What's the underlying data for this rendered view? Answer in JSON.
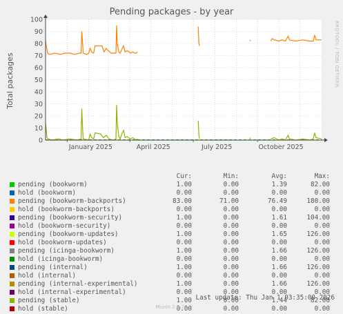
{
  "title": "Pending packages - by year",
  "side_text": "RRDTOOL / TOBI OETIKER",
  "footer": "Munin 2.0.73",
  "last_update": "Last update: Thu Jan  1 03:35:00 2026",
  "columns": [
    "Cur:",
    "Min:",
    "Avg:",
    "Max:"
  ],
  "legend": [
    {
      "name": "pending (bookworm)",
      "color": "#00cc00",
      "cur": "1.00",
      "min": "0.00",
      "avg": "1.39",
      "max": "82.00"
    },
    {
      "name": "hold (bookworm)",
      "color": "#0066b3",
      "cur": "0.00",
      "min": "0.00",
      "avg": "0.00",
      "max": "0.00"
    },
    {
      "name": "pending (bookworm-backports)",
      "color": "#ff8000",
      "cur": "83.00",
      "min": "71.00",
      "avg": "76.49",
      "max": "180.00"
    },
    {
      "name": "hold (bookworm-backports)",
      "color": "#ffcc00",
      "cur": "0.00",
      "min": "0.00",
      "avg": "0.00",
      "max": "0.00"
    },
    {
      "name": "pending (bookworm-security)",
      "color": "#330099",
      "cur": "1.00",
      "min": "0.00",
      "avg": "1.61",
      "max": "104.00"
    },
    {
      "name": "hold (bookworm-security)",
      "color": "#990099",
      "cur": "0.00",
      "min": "0.00",
      "avg": "0.00",
      "max": "0.00"
    },
    {
      "name": "pending (bookworm-updates)",
      "color": "#ccff00",
      "cur": "1.00",
      "min": "0.00",
      "avg": "1.65",
      "max": "126.00"
    },
    {
      "name": "hold (bookworm-updates)",
      "color": "#ff0000",
      "cur": "0.00",
      "min": "0.00",
      "avg": "0.00",
      "max": "0.00"
    },
    {
      "name": "pending (icinga-bookworm)",
      "color": "#808080",
      "cur": "1.00",
      "min": "0.00",
      "avg": "1.66",
      "max": "126.00"
    },
    {
      "name": "hold (icinga-bookworm)",
      "color": "#008f00",
      "cur": "0.00",
      "min": "0.00",
      "avg": "0.00",
      "max": "0.00"
    },
    {
      "name": "pending (internal)",
      "color": "#00487d",
      "cur": "1.00",
      "min": "0.00",
      "avg": "1.66",
      "max": "126.00"
    },
    {
      "name": "hold (internal)",
      "color": "#b35a00",
      "cur": "0.00",
      "min": "0.00",
      "avg": "0.00",
      "max": "0.00"
    },
    {
      "name": "pending (internal-experimental)",
      "color": "#b38f00",
      "cur": "1.00",
      "min": "0.00",
      "avg": "1.66",
      "max": "126.00"
    },
    {
      "name": "hold (internal-experimental)",
      "color": "#6b006b",
      "cur": "0.00",
      "min": "0.00",
      "avg": "0.00",
      "max": "0.00"
    },
    {
      "name": "pending (stable)",
      "color": "#8fb300",
      "cur": "1.00",
      "min": "0.00",
      "avg": "1.44",
      "max": "82.00"
    },
    {
      "name": "hold (stable)",
      "color": "#b30000",
      "cur": "0.00",
      "min": "0.00",
      "avg": "0.00",
      "max": "0.00"
    }
  ],
  "chart_data": {
    "type": "line",
    "title": "Pending packages - by year",
    "ylabel": "Total packages",
    "ylim": [
      0,
      100
    ],
    "yticks": [
      0,
      10,
      20,
      30,
      40,
      50,
      60,
      70,
      80,
      90,
      100
    ],
    "xlim": [
      "2024-12-01",
      "2026-01-01"
    ],
    "xticks": [
      {
        "label": "January 2025",
        "date": "2025-01-01"
      },
      {
        "label": "April 2025",
        "date": "2025-04-01"
      },
      {
        "label": "July 2025",
        "date": "2025-07-01"
      },
      {
        "label": "October 2025",
        "date": "2025-10-01"
      }
    ],
    "grid": true,
    "series": [
      {
        "name": "pending (bookworm-backports)",
        "color": "#ff8000",
        "segments": [
          [
            [
              "2024-12-01",
              83
            ],
            [
              "2024-12-02",
              78
            ],
            [
              "2024-12-04",
              72
            ],
            [
              "2024-12-06",
              71
            ],
            [
              "2024-12-15",
              72
            ],
            [
              "2024-12-22",
              71
            ],
            [
              "2024-12-29",
              72
            ],
            [
              "2025-01-05",
              72
            ],
            [
              "2025-01-12",
              71
            ],
            [
              "2025-01-18",
              72
            ],
            [
              "2025-01-21",
              72
            ],
            [
              "2025-01-22",
              90
            ],
            [
              "2025-01-23",
              82
            ],
            [
              "2025-01-24",
              72
            ],
            [
              "2025-01-29",
              71
            ],
            [
              "2025-02-01",
              72
            ],
            [
              "2025-02-03",
              76
            ],
            [
              "2025-02-05",
              73
            ],
            [
              "2025-02-08",
              72
            ],
            [
              "2025-02-10",
              78
            ],
            [
              "2025-02-20",
              78
            ],
            [
              "2025-02-23",
              73
            ],
            [
              "2025-02-26",
              76
            ],
            [
              "2025-03-01",
              74
            ],
            [
              "2025-03-05",
              72
            ],
            [
              "2025-03-08",
              72
            ],
            [
              "2025-03-12",
              72
            ],
            [
              "2025-03-13",
              95
            ],
            [
              "2025-03-14",
              80
            ],
            [
              "2025-03-16",
              73
            ],
            [
              "2025-03-18",
              72
            ],
            [
              "2025-03-21",
              76
            ],
            [
              "2025-03-23",
              78
            ],
            [
              "2025-03-25",
              73
            ],
            [
              "2025-03-28",
              74
            ],
            [
              "2025-03-31",
              73
            ],
            [
              "2025-04-02",
              72
            ],
            [
              "2025-04-05",
              73
            ],
            [
              "2025-04-08",
              72
            ],
            [
              "2025-04-10",
              72
            ],
            [
              "2025-04-12",
              73
            ]
          ],
          [
            [
              "2025-07-08",
              94
            ],
            [
              "2025-07-09",
              80
            ],
            [
              "2025-07-10",
              78
            ]
          ],
          [
            [
              "2025-09-20",
              83
            ],
            [
              "2025-09-21",
              82
            ]
          ],
          [
            [
              "2025-10-20",
              82
            ],
            [
              "2025-10-22",
              84
            ],
            [
              "2025-10-25",
              83
            ],
            [
              "2025-11-01",
              82
            ],
            [
              "2025-11-05",
              83
            ],
            [
              "2025-11-10",
              82
            ],
            [
              "2025-11-14",
              86
            ],
            [
              "2025-11-16",
              83
            ],
            [
              "2025-11-25",
              82
            ],
            [
              "2025-12-05",
              83
            ],
            [
              "2025-12-15",
              82
            ],
            [
              "2025-12-20",
              82
            ],
            [
              "2025-12-22",
              87
            ],
            [
              "2025-12-24",
              83
            ],
            [
              "2026-01-01",
              83
            ]
          ]
        ]
      },
      {
        "name": "pending (stable)",
        "color": "#8fb300",
        "segments": [
          [
            [
              "2024-12-01",
              14
            ],
            [
              "2024-12-02",
              9
            ],
            [
              "2024-12-03",
              2
            ],
            [
              "2024-12-05",
              1
            ],
            [
              "2024-12-10",
              0
            ],
            [
              "2024-12-20",
              1
            ],
            [
              "2024-12-25",
              0
            ],
            [
              "2025-01-05",
              1
            ],
            [
              "2025-01-15",
              0
            ],
            [
              "2025-01-21",
              1
            ],
            [
              "2025-01-22",
              26
            ],
            [
              "2025-01-23",
              12
            ],
            [
              "2025-01-24",
              1
            ],
            [
              "2025-02-01",
              0
            ],
            [
              "2025-02-03",
              5
            ],
            [
              "2025-02-05",
              2
            ],
            [
              "2025-02-08",
              1
            ],
            [
              "2025-02-10",
              6
            ],
            [
              "2025-02-18",
              5
            ],
            [
              "2025-02-22",
              2
            ],
            [
              "2025-02-26",
              4
            ],
            [
              "2025-03-02",
              1
            ],
            [
              "2025-03-08",
              0
            ],
            [
              "2025-03-12",
              1
            ],
            [
              "2025-03-13",
              29
            ],
            [
              "2025-03-14",
              14
            ],
            [
              "2025-03-16",
              3
            ],
            [
              "2025-03-18",
              1
            ],
            [
              "2025-03-21",
              6
            ],
            [
              "2025-03-23",
              8
            ],
            [
              "2025-03-25",
              2
            ],
            [
              "2025-03-28",
              3
            ],
            [
              "2025-04-01",
              1
            ],
            [
              "2025-04-05",
              2
            ],
            [
              "2025-04-10",
              0
            ],
            [
              "2025-04-12",
              1
            ]
          ],
          [
            [
              "2025-07-08",
              16
            ],
            [
              "2025-07-09",
              4
            ],
            [
              "2025-07-10",
              1
            ]
          ],
          [
            [
              "2025-09-20",
              2
            ],
            [
              "2025-09-21",
              1
            ]
          ],
          [
            [
              "2025-10-20",
              1
            ],
            [
              "2025-10-25",
              2
            ],
            [
              "2025-11-01",
              0
            ],
            [
              "2025-11-05",
              1
            ],
            [
              "2025-11-10",
              0
            ],
            [
              "2025-11-14",
              4
            ],
            [
              "2025-11-16",
              1
            ],
            [
              "2025-11-25",
              0
            ],
            [
              "2025-12-05",
              1
            ],
            [
              "2025-12-15",
              0
            ],
            [
              "2025-12-20",
              1
            ],
            [
              "2025-12-22",
              6
            ],
            [
              "2025-12-24",
              2
            ],
            [
              "2026-01-01",
              1
            ]
          ]
        ]
      }
    ]
  }
}
